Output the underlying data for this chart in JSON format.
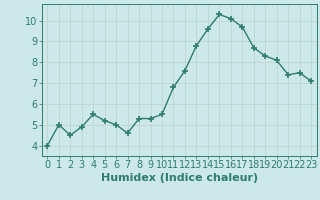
{
  "x": [
    0,
    1,
    2,
    3,
    4,
    5,
    6,
    7,
    8,
    9,
    10,
    11,
    12,
    13,
    14,
    15,
    16,
    17,
    18,
    19,
    20,
    21,
    22,
    23
  ],
  "y": [
    4.0,
    5.0,
    4.5,
    4.9,
    5.5,
    5.2,
    5.0,
    4.6,
    5.3,
    5.3,
    5.5,
    6.8,
    7.6,
    8.8,
    9.6,
    10.3,
    10.1,
    9.7,
    8.7,
    8.3,
    8.1,
    7.4,
    7.5,
    7.1
  ],
  "xlabel": "Humidex (Indice chaleur)",
  "xlim": [
    -0.5,
    23.5
  ],
  "ylim": [
    3.5,
    10.8
  ],
  "yticks": [
    4,
    5,
    6,
    7,
    8,
    9,
    10
  ],
  "xticks": [
    0,
    1,
    2,
    3,
    4,
    5,
    6,
    7,
    8,
    9,
    10,
    11,
    12,
    13,
    14,
    15,
    16,
    17,
    18,
    19,
    20,
    21,
    22,
    23
  ],
  "line_color": "#2e7d6e",
  "marker": "+",
  "marker_size": 5,
  "bg_color": "#cce8e8",
  "grid_color": "#c0d8d0",
  "tick_label_fontsize": 7,
  "xlabel_fontsize": 8
}
